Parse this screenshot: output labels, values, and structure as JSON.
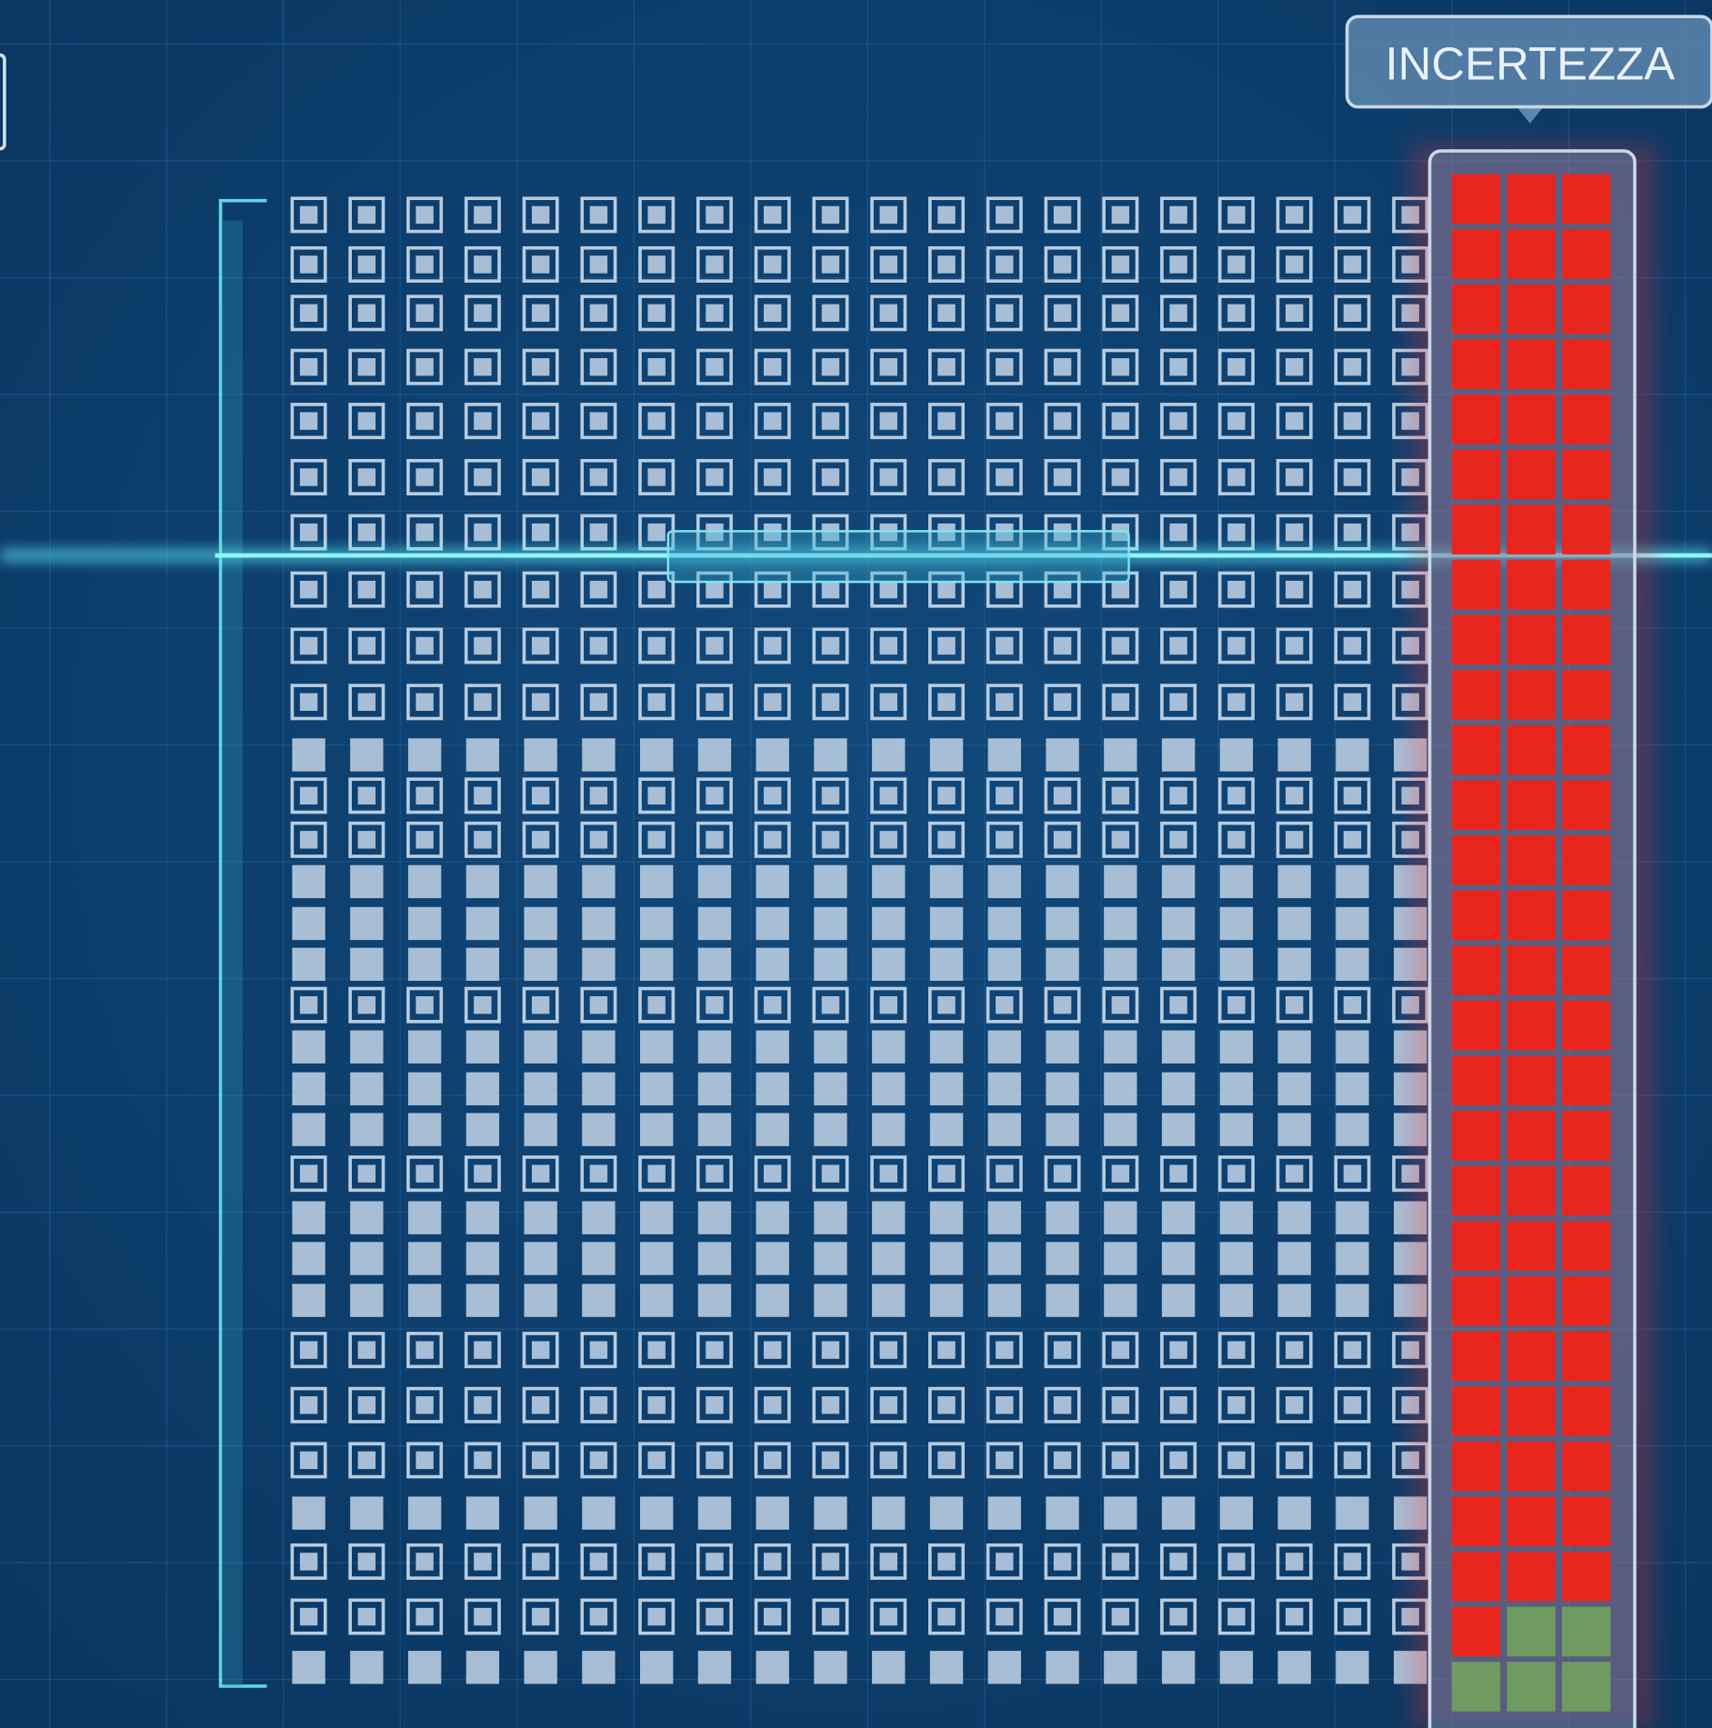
{
  "label": "INCERTEZZA"
}
